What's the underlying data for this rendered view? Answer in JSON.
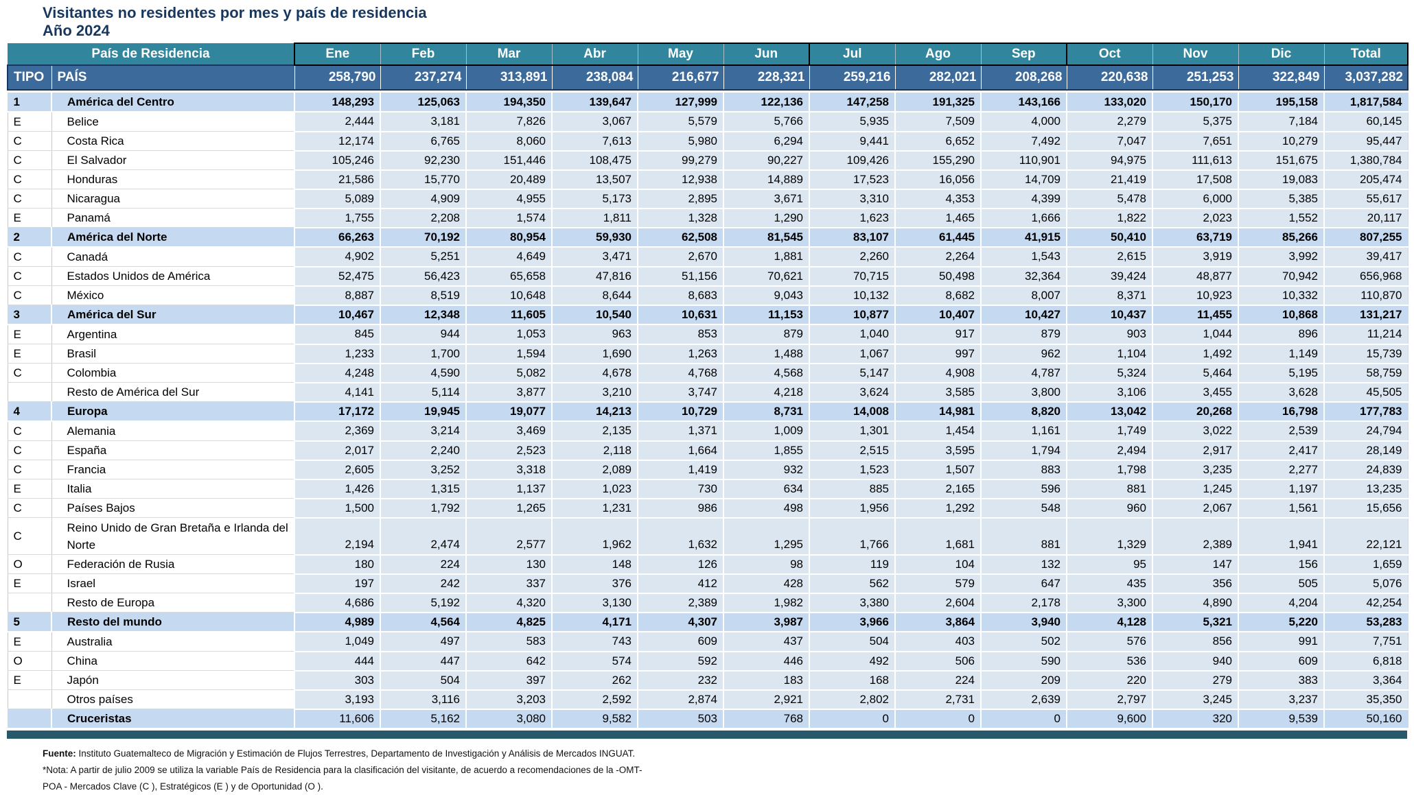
{
  "title": "Visitantes no residentes por mes y país de residencia",
  "subtitle": "Año 2024",
  "colors": {
    "title_navy": "#17375E",
    "teal_header": "#31859C",
    "blue_header": "#3C6A9B",
    "region_row": "#C5D9F1",
    "data_cell": "#DCE6F1",
    "bottom_bar": "#27596B"
  },
  "table": {
    "residence_header": "País de Residencia",
    "tipo_header": "TIPO",
    "pais_header": "PAÍS",
    "columns": [
      "Ene",
      "Feb",
      "Mar",
      "Abr",
      "May",
      "Jun",
      "Jul",
      "Ago",
      "Sep",
      "Oct",
      "Nov",
      "Dic",
      "Total"
    ],
    "grand_totals": [
      "258,790",
      "237,274",
      "313,891",
      "238,084",
      "216,677",
      "228,321",
      "259,216",
      "282,021",
      "208,268",
      "220,638",
      "251,253",
      "322,849",
      "3,037,282"
    ],
    "rows": [
      {
        "tipo": "1",
        "pais": "América del Centro",
        "kind": "region",
        "values": [
          "148,293",
          "125,063",
          "194,350",
          "139,647",
          "127,999",
          "122,136",
          "147,258",
          "191,325",
          "143,166",
          "133,020",
          "150,170",
          "195,158",
          "1,817,584"
        ]
      },
      {
        "tipo": "E",
        "pais": "Belice",
        "kind": "country",
        "values": [
          "2,444",
          "3,181",
          "7,826",
          "3,067",
          "5,579",
          "5,766",
          "5,935",
          "7,509",
          "4,000",
          "2,279",
          "5,375",
          "7,184",
          "60,145"
        ]
      },
      {
        "tipo": "C",
        "pais": "Costa Rica",
        "kind": "country",
        "values": [
          "12,174",
          "6,765",
          "8,060",
          "7,613",
          "5,980",
          "6,294",
          "9,441",
          "6,652",
          "7,492",
          "7,047",
          "7,651",
          "10,279",
          "95,447"
        ]
      },
      {
        "tipo": "C",
        "pais": "El Salvador",
        "kind": "country",
        "values": [
          "105,246",
          "92,230",
          "151,446",
          "108,475",
          "99,279",
          "90,227",
          "109,426",
          "155,290",
          "110,901",
          "94,975",
          "111,613",
          "151,675",
          "1,380,784"
        ]
      },
      {
        "tipo": "C",
        "pais": "Honduras",
        "kind": "country",
        "values": [
          "21,586",
          "15,770",
          "20,489",
          "13,507",
          "12,938",
          "14,889",
          "17,523",
          "16,056",
          "14,709",
          "21,419",
          "17,508",
          "19,083",
          "205,474"
        ]
      },
      {
        "tipo": "C",
        "pais": "Nicaragua",
        "kind": "country",
        "values": [
          "5,089",
          "4,909",
          "4,955",
          "5,173",
          "2,895",
          "3,671",
          "3,310",
          "4,353",
          "4,399",
          "5,478",
          "6,000",
          "5,385",
          "55,617"
        ]
      },
      {
        "tipo": "E",
        "pais": "Panamá",
        "kind": "country",
        "values": [
          "1,755",
          "2,208",
          "1,574",
          "1,811",
          "1,328",
          "1,290",
          "1,623",
          "1,465",
          "1,666",
          "1,822",
          "2,023",
          "1,552",
          "20,117"
        ]
      },
      {
        "tipo": "2",
        "pais": "América del Norte",
        "kind": "region",
        "values": [
          "66,263",
          "70,192",
          "80,954",
          "59,930",
          "62,508",
          "81,545",
          "83,107",
          "61,445",
          "41,915",
          "50,410",
          "63,719",
          "85,266",
          "807,255"
        ]
      },
      {
        "tipo": "C",
        "pais": "Canadá",
        "kind": "country",
        "values": [
          "4,902",
          "5,251",
          "4,649",
          "3,471",
          "2,670",
          "1,881",
          "2,260",
          "2,264",
          "1,543",
          "2,615",
          "3,919",
          "3,992",
          "39,417"
        ]
      },
      {
        "tipo": "C",
        "pais": "Estados Unidos de América",
        "kind": "country",
        "values": [
          "52,475",
          "56,423",
          "65,658",
          "47,816",
          "51,156",
          "70,621",
          "70,715",
          "50,498",
          "32,364",
          "39,424",
          "48,877",
          "70,942",
          "656,968"
        ]
      },
      {
        "tipo": "C",
        "pais": "México",
        "kind": "country",
        "values": [
          "8,887",
          "8,519",
          "10,648",
          "8,644",
          "8,683",
          "9,043",
          "10,132",
          "8,682",
          "8,007",
          "8,371",
          "10,923",
          "10,332",
          "110,870"
        ]
      },
      {
        "tipo": "3",
        "pais": "América del Sur",
        "kind": "region",
        "values": [
          "10,467",
          "12,348",
          "11,605",
          "10,540",
          "10,631",
          "11,153",
          "10,877",
          "10,407",
          "10,427",
          "10,437",
          "11,455",
          "10,868",
          "131,217"
        ]
      },
      {
        "tipo": "E",
        "pais": "Argentina",
        "kind": "country",
        "values": [
          "845",
          "944",
          "1,053",
          "963",
          "853",
          "879",
          "1,040",
          "917",
          "879",
          "903",
          "1,044",
          "896",
          "11,214"
        ]
      },
      {
        "tipo": "E",
        "pais": "Brasil",
        "kind": "country",
        "values": [
          "1,233",
          "1,700",
          "1,594",
          "1,690",
          "1,263",
          "1,488",
          "1,067",
          "997",
          "962",
          "1,104",
          "1,492",
          "1,149",
          "15,739"
        ]
      },
      {
        "tipo": "C",
        "pais": "Colombia",
        "kind": "country",
        "values": [
          "4,248",
          "4,590",
          "5,082",
          "4,678",
          "4,768",
          "4,568",
          "5,147",
          "4,908",
          "4,787",
          "5,324",
          "5,464",
          "5,195",
          "58,759"
        ]
      },
      {
        "tipo": "",
        "pais": "Resto de América del Sur",
        "kind": "country",
        "values": [
          "4,141",
          "5,114",
          "3,877",
          "3,210",
          "3,747",
          "4,218",
          "3,624",
          "3,585",
          "3,800",
          "3,106",
          "3,455",
          "3,628",
          "45,505"
        ]
      },
      {
        "tipo": "4",
        "pais": "Europa",
        "kind": "region",
        "values": [
          "17,172",
          "19,945",
          "19,077",
          "14,213",
          "10,729",
          "8,731",
          "14,008",
          "14,981",
          "8,820",
          "13,042",
          "20,268",
          "16,798",
          "177,783"
        ]
      },
      {
        "tipo": "C",
        "pais": "Alemania",
        "kind": "country",
        "values": [
          "2,369",
          "3,214",
          "3,469",
          "2,135",
          "1,371",
          "1,009",
          "1,301",
          "1,454",
          "1,161",
          "1,749",
          "3,022",
          "2,539",
          "24,794"
        ]
      },
      {
        "tipo": "C",
        "pais": "España",
        "kind": "country",
        "values": [
          "2,017",
          "2,240",
          "2,523",
          "2,118",
          "1,664",
          "1,855",
          "2,515",
          "3,595",
          "1,794",
          "2,494",
          "2,917",
          "2,417",
          "28,149"
        ]
      },
      {
        "tipo": "C",
        "pais": "Francia",
        "kind": "country",
        "values": [
          "2,605",
          "3,252",
          "3,318",
          "2,089",
          "1,419",
          "932",
          "1,523",
          "1,507",
          "883",
          "1,798",
          "3,235",
          "2,277",
          "24,839"
        ]
      },
      {
        "tipo": "E",
        "pais": "Italia",
        "kind": "country",
        "values": [
          "1,426",
          "1,315",
          "1,137",
          "1,023",
          "730",
          "634",
          "885",
          "2,165",
          "596",
          "881",
          "1,245",
          "1,197",
          "13,235"
        ]
      },
      {
        "tipo": "C",
        "pais": "Países Bajos",
        "kind": "country",
        "values": [
          "1,500",
          "1,792",
          "1,265",
          "1,231",
          "986",
          "498",
          "1,956",
          "1,292",
          "548",
          "960",
          "2,067",
          "1,561",
          "15,656"
        ]
      },
      {
        "tipo": "C",
        "pais": "Reino Unido de Gran Bretaña e Irlanda del Norte",
        "kind": "country",
        "tall": true,
        "values": [
          "2,194",
          "2,474",
          "2,577",
          "1,962",
          "1,632",
          "1,295",
          "1,766",
          "1,681",
          "881",
          "1,329",
          "2,389",
          "1,941",
          "22,121"
        ]
      },
      {
        "tipo": "O",
        "pais": "Federación de Rusia",
        "kind": "country",
        "values": [
          "180",
          "224",
          "130",
          "148",
          "126",
          "98",
          "119",
          "104",
          "132",
          "95",
          "147",
          "156",
          "1,659"
        ]
      },
      {
        "tipo": "E",
        "pais": "Israel",
        "kind": "country",
        "values": [
          "197",
          "242",
          "337",
          "376",
          "412",
          "428",
          "562",
          "579",
          "647",
          "435",
          "356",
          "505",
          "5,076"
        ]
      },
      {
        "tipo": "",
        "pais": "Resto de Europa",
        "kind": "country",
        "values": [
          "4,686",
          "5,192",
          "4,320",
          "3,130",
          "2,389",
          "1,982",
          "3,380",
          "2,604",
          "2,178",
          "3,300",
          "4,890",
          "4,204",
          "42,254"
        ]
      },
      {
        "tipo": "5",
        "pais": "Resto del mundo",
        "kind": "region",
        "values": [
          "4,989",
          "4,564",
          "4,825",
          "4,171",
          "4,307",
          "3,987",
          "3,966",
          "3,864",
          "3,940",
          "4,128",
          "5,321",
          "5,220",
          "53,283"
        ]
      },
      {
        "tipo": "E",
        "pais": "Australia",
        "kind": "country",
        "values": [
          "1,049",
          "497",
          "583",
          "743",
          "609",
          "437",
          "504",
          "403",
          "502",
          "576",
          "856",
          "991",
          "7,751"
        ]
      },
      {
        "tipo": "O",
        "pais": "China",
        "kind": "country",
        "values": [
          "444",
          "447",
          "642",
          "574",
          "592",
          "446",
          "492",
          "506",
          "590",
          "536",
          "940",
          "609",
          "6,818"
        ]
      },
      {
        "tipo": "E",
        "pais": "Japón",
        "kind": "country",
        "values": [
          "303",
          "504",
          "397",
          "262",
          "232",
          "183",
          "168",
          "224",
          "209",
          "220",
          "279",
          "383",
          "3,364"
        ]
      },
      {
        "tipo": "",
        "pais": "Otros países",
        "kind": "country",
        "values": [
          "3,193",
          "3,116",
          "3,203",
          "2,592",
          "2,874",
          "2,921",
          "2,802",
          "2,731",
          "2,639",
          "2,797",
          "3,245",
          "3,237",
          "35,350"
        ]
      },
      {
        "tipo": "",
        "pais": "Cruceristas",
        "kind": "cruceristas",
        "values": [
          "11,606",
          "5,162",
          "3,080",
          "9,582",
          "503",
          "768",
          "0",
          "0",
          "0",
          "9,600",
          "320",
          "9,539",
          "50,160"
        ]
      }
    ]
  },
  "footer": {
    "fuente_label": "Fuente:",
    "fuente_text": " Instituto Guatemalteco de Migración  y  Estimación de Flujos Terrestres, Departamento de Investigación y Análisis de Mercados  INGUAT.",
    "nota_text": "*Nota: A partir de julio 2009 se utiliza la variable País de Residencia para la clasificación del visitante, de acuerdo a  recomendaciones de la -OMT-",
    "poa_text": "POA - Mercados Clave (C ), Estratégicos (E ) y de Oportunidad (O )."
  }
}
